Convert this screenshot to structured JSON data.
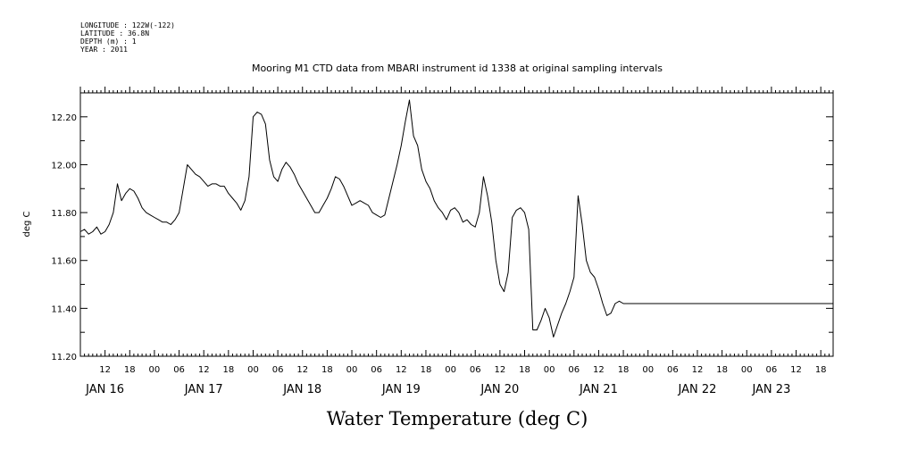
{
  "header": {
    "lines": [
      "LONGITUDE : 122W(-122)",
      "LATITUDE : 36.8N",
      "DEPTH (m) : 1",
      "YEAR : 2011"
    ]
  },
  "chart_data": {
    "type": "line",
    "title": "Mooring M1 CTD data from MBARI instrument id 1338 at original sampling intervals",
    "xlabel": "Water Temperature (deg C)",
    "ylabel": "deg C",
    "ylim": [
      11.2,
      12.3
    ],
    "yticks": [
      "11.20",
      "11.40",
      "11.60",
      "11.80",
      "12.00",
      "12.20"
    ],
    "xlim_hours": [
      6,
      189
    ],
    "hour_ticks": [
      {
        "h": 12,
        "label": "12"
      },
      {
        "h": 18,
        "label": "18"
      },
      {
        "h": 24,
        "label": "00"
      },
      {
        "h": 30,
        "label": "06"
      },
      {
        "h": 36,
        "label": "12"
      },
      {
        "h": 42,
        "label": "18"
      },
      {
        "h": 48,
        "label": "00"
      },
      {
        "h": 54,
        "label": "06"
      },
      {
        "h": 60,
        "label": "12"
      },
      {
        "h": 66,
        "label": "18"
      },
      {
        "h": 72,
        "label": "00"
      },
      {
        "h": 78,
        "label": "06"
      },
      {
        "h": 84,
        "label": "12"
      },
      {
        "h": 90,
        "label": "18"
      },
      {
        "h": 96,
        "label": "00"
      },
      {
        "h": 102,
        "label": "06"
      },
      {
        "h": 108,
        "label": "12"
      },
      {
        "h": 114,
        "label": "18"
      },
      {
        "h": 120,
        "label": "00"
      },
      {
        "h": 126,
        "label": "06"
      },
      {
        "h": 132,
        "label": "12"
      },
      {
        "h": 138,
        "label": "18"
      },
      {
        "h": 144,
        "label": "00"
      },
      {
        "h": 150,
        "label": "06"
      },
      {
        "h": 156,
        "label": "12"
      },
      {
        "h": 162,
        "label": "18"
      },
      {
        "h": 168,
        "label": "00"
      },
      {
        "h": 174,
        "label": "06"
      },
      {
        "h": 180,
        "label": "12"
      },
      {
        "h": 186,
        "label": "18"
      }
    ],
    "date_labels": [
      {
        "h": 12,
        "label": "JAN 16"
      },
      {
        "h": 36,
        "label": "JAN 17"
      },
      {
        "h": 60,
        "label": "JAN 18"
      },
      {
        "h": 84,
        "label": "JAN 19"
      },
      {
        "h": 108,
        "label": "JAN 20"
      },
      {
        "h": 132,
        "label": "JAN 21"
      },
      {
        "h": 156,
        "label": "JAN 22"
      },
      {
        "h": 174,
        "label": "JAN 23"
      }
    ],
    "grid": false,
    "series": [
      {
        "color": "#000000",
        "x": [
          6,
          7,
          8,
          9,
          10,
          11,
          12,
          13,
          14,
          15,
          16,
          17,
          18,
          19,
          20,
          21,
          22,
          23,
          24,
          25,
          26,
          27,
          28,
          29,
          30,
          31,
          32,
          33,
          34,
          35,
          36,
          37,
          38,
          39,
          40,
          41,
          42,
          43,
          44,
          45,
          46,
          47,
          48,
          49,
          50,
          51,
          52,
          53,
          54,
          55,
          56,
          57,
          58,
          59,
          60,
          61,
          62,
          63,
          64,
          65,
          66,
          67,
          68,
          69,
          70,
          71,
          72,
          73,
          74,
          75,
          76,
          77,
          78,
          79,
          80,
          81,
          82,
          83,
          84,
          85,
          86,
          87,
          88,
          89,
          90,
          91,
          92,
          93,
          94,
          95,
          96,
          97,
          98,
          99,
          100,
          101,
          102,
          103,
          104,
          105,
          106,
          107,
          108,
          109,
          110,
          111,
          112,
          113,
          114,
          115,
          116,
          117,
          118,
          119,
          120,
          121,
          122,
          123,
          124,
          125,
          126,
          127,
          128,
          129,
          130,
          131,
          132,
          133,
          134,
          135,
          136,
          137,
          138,
          139,
          140,
          141,
          142,
          143,
          144,
          145,
          146,
          147,
          148,
          149,
          150,
          151,
          152,
          153,
          154,
          155,
          156,
          157,
          158,
          159,
          160,
          161,
          162,
          163,
          164,
          165,
          166,
          167,
          168,
          169,
          170,
          171,
          172,
          173,
          174,
          175,
          176,
          177,
          178,
          179,
          180,
          181,
          182,
          183,
          184,
          185,
          186,
          187,
          188,
          189
        ],
        "y": [
          11.72,
          11.73,
          11.71,
          11.72,
          11.74,
          11.71,
          11.72,
          11.75,
          11.8,
          11.92,
          11.85,
          11.88,
          11.9,
          11.89,
          11.86,
          11.82,
          11.8,
          11.79,
          11.78,
          11.77,
          11.76,
          11.76,
          11.75,
          11.77,
          11.8,
          11.9,
          12.0,
          11.98,
          11.96,
          11.95,
          11.93,
          11.91,
          11.92,
          11.92,
          11.91,
          11.91,
          11.88,
          11.86,
          11.84,
          11.81,
          11.85,
          11.95,
          12.2,
          12.22,
          12.21,
          12.17,
          12.02,
          11.95,
          11.93,
          11.98,
          12.01,
          11.99,
          11.96,
          11.92,
          11.89,
          11.86,
          11.83,
          11.8,
          11.8,
          11.83,
          11.86,
          11.9,
          11.95,
          11.94,
          11.91,
          11.87,
          11.83,
          11.84,
          11.85,
          11.84,
          11.83,
          11.8,
          11.79,
          11.78,
          11.79,
          11.86,
          11.93,
          12.0,
          12.08,
          12.18,
          12.27,
          12.12,
          12.08,
          11.98,
          11.93,
          11.9,
          11.85,
          11.82,
          11.8,
          11.77,
          11.81,
          11.82,
          11.8,
          11.76,
          11.77,
          11.75,
          11.74,
          11.8,
          11.95,
          11.87,
          11.76,
          11.6,
          11.5,
          11.47,
          11.55,
          11.78,
          11.81,
          11.82,
          11.8,
          11.73,
          11.31,
          11.31,
          11.35,
          11.4,
          11.36,
          11.28,
          11.33,
          11.38,
          11.42,
          11.47,
          11.53,
          11.87,
          11.75,
          11.6,
          11.55,
          11.53,
          11.48,
          11.42,
          11.37,
          11.38,
          11.42,
          11.43,
          11.42,
          11.42,
          11.42,
          11.42,
          11.42,
          11.42,
          11.42,
          11.42,
          11.42,
          11.42,
          11.42,
          11.42,
          11.42,
          11.42,
          11.42,
          11.42,
          11.42,
          11.42,
          11.42,
          11.42,
          11.42,
          11.42,
          11.42,
          11.42,
          11.42,
          11.42,
          11.42,
          11.42,
          11.42,
          11.42,
          11.42,
          11.42,
          11.42,
          11.42,
          11.42,
          11.42,
          11.42,
          11.42,
          11.42,
          11.42,
          11.42,
          11.42,
          11.42,
          11.42,
          11.42,
          11.42,
          11.42,
          11.42,
          11.42,
          11.42,
          11.42,
          11.42
        ]
      }
    ]
  }
}
